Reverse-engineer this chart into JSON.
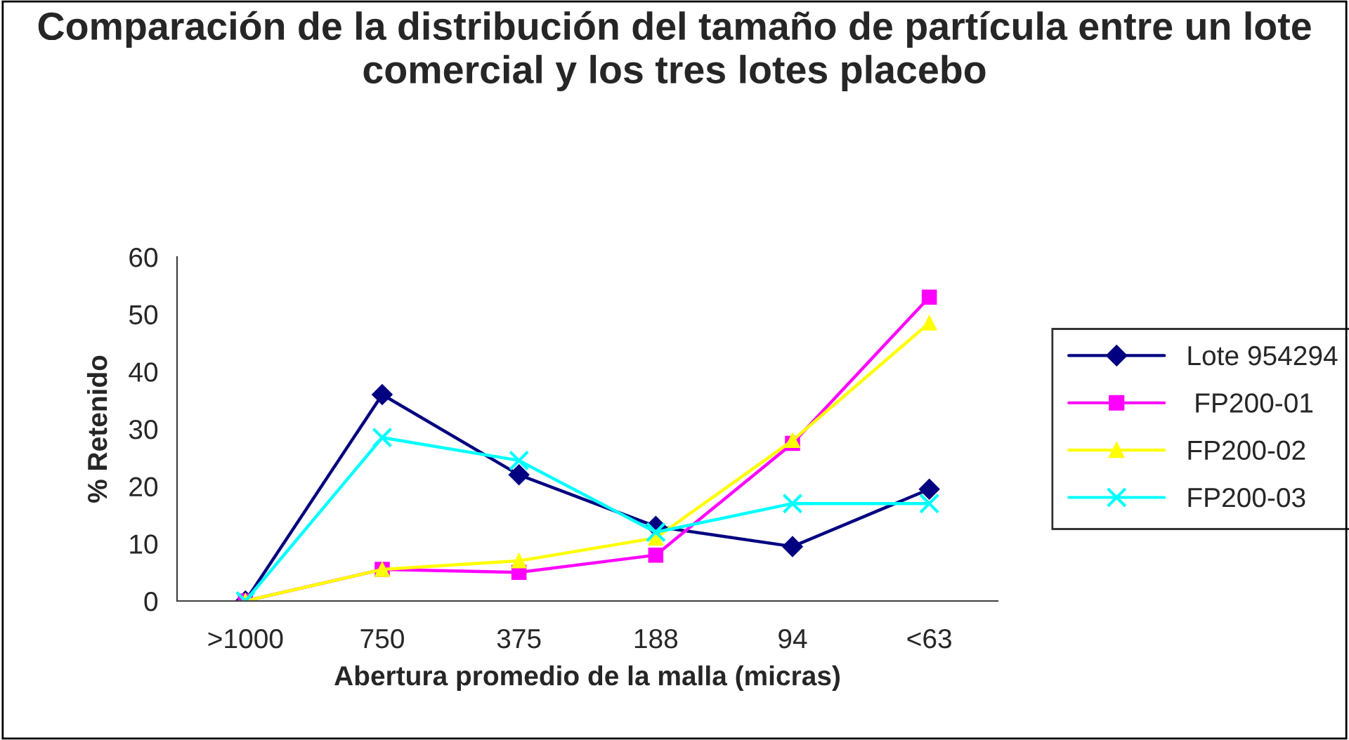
{
  "chart_data": {
    "type": "line",
    "title": "Comparación de la distribución del tamaño de partícula entre un lote comercial y los tres lotes placebo",
    "xlabel": "Abertura promedio de la malla (micras)",
    "ylabel": "% Retenido",
    "categories": [
      ">1000",
      "750",
      "375",
      "188",
      "94",
      "<63"
    ],
    "series": [
      {
        "name": "Lote 954294",
        "color": "#000080",
        "marker": "diamond",
        "values": [
          0,
          36,
          22,
          13,
          9.5,
          19.5
        ]
      },
      {
        "name": " FP200-01",
        "color": "#ff00ff",
        "marker": "square",
        "values": [
          0,
          5.5,
          5,
          8,
          27.5,
          53
        ]
      },
      {
        "name": "FP200-02",
        "color": "#ffff00",
        "marker": "triangle",
        "values": [
          0,
          5.5,
          7,
          11,
          28,
          48.5
        ]
      },
      {
        "name": "FP200-03",
        "color": "#00ffff",
        "marker": "cross",
        "values": [
          0,
          28.5,
          24.5,
          12,
          17,
          17
        ]
      }
    ],
    "ylim": [
      0,
      60
    ],
    "yticks": [
      0,
      10,
      20,
      30,
      40,
      50,
      60
    ],
    "grid": false,
    "legend": "right",
    "line_style": "solid"
  }
}
